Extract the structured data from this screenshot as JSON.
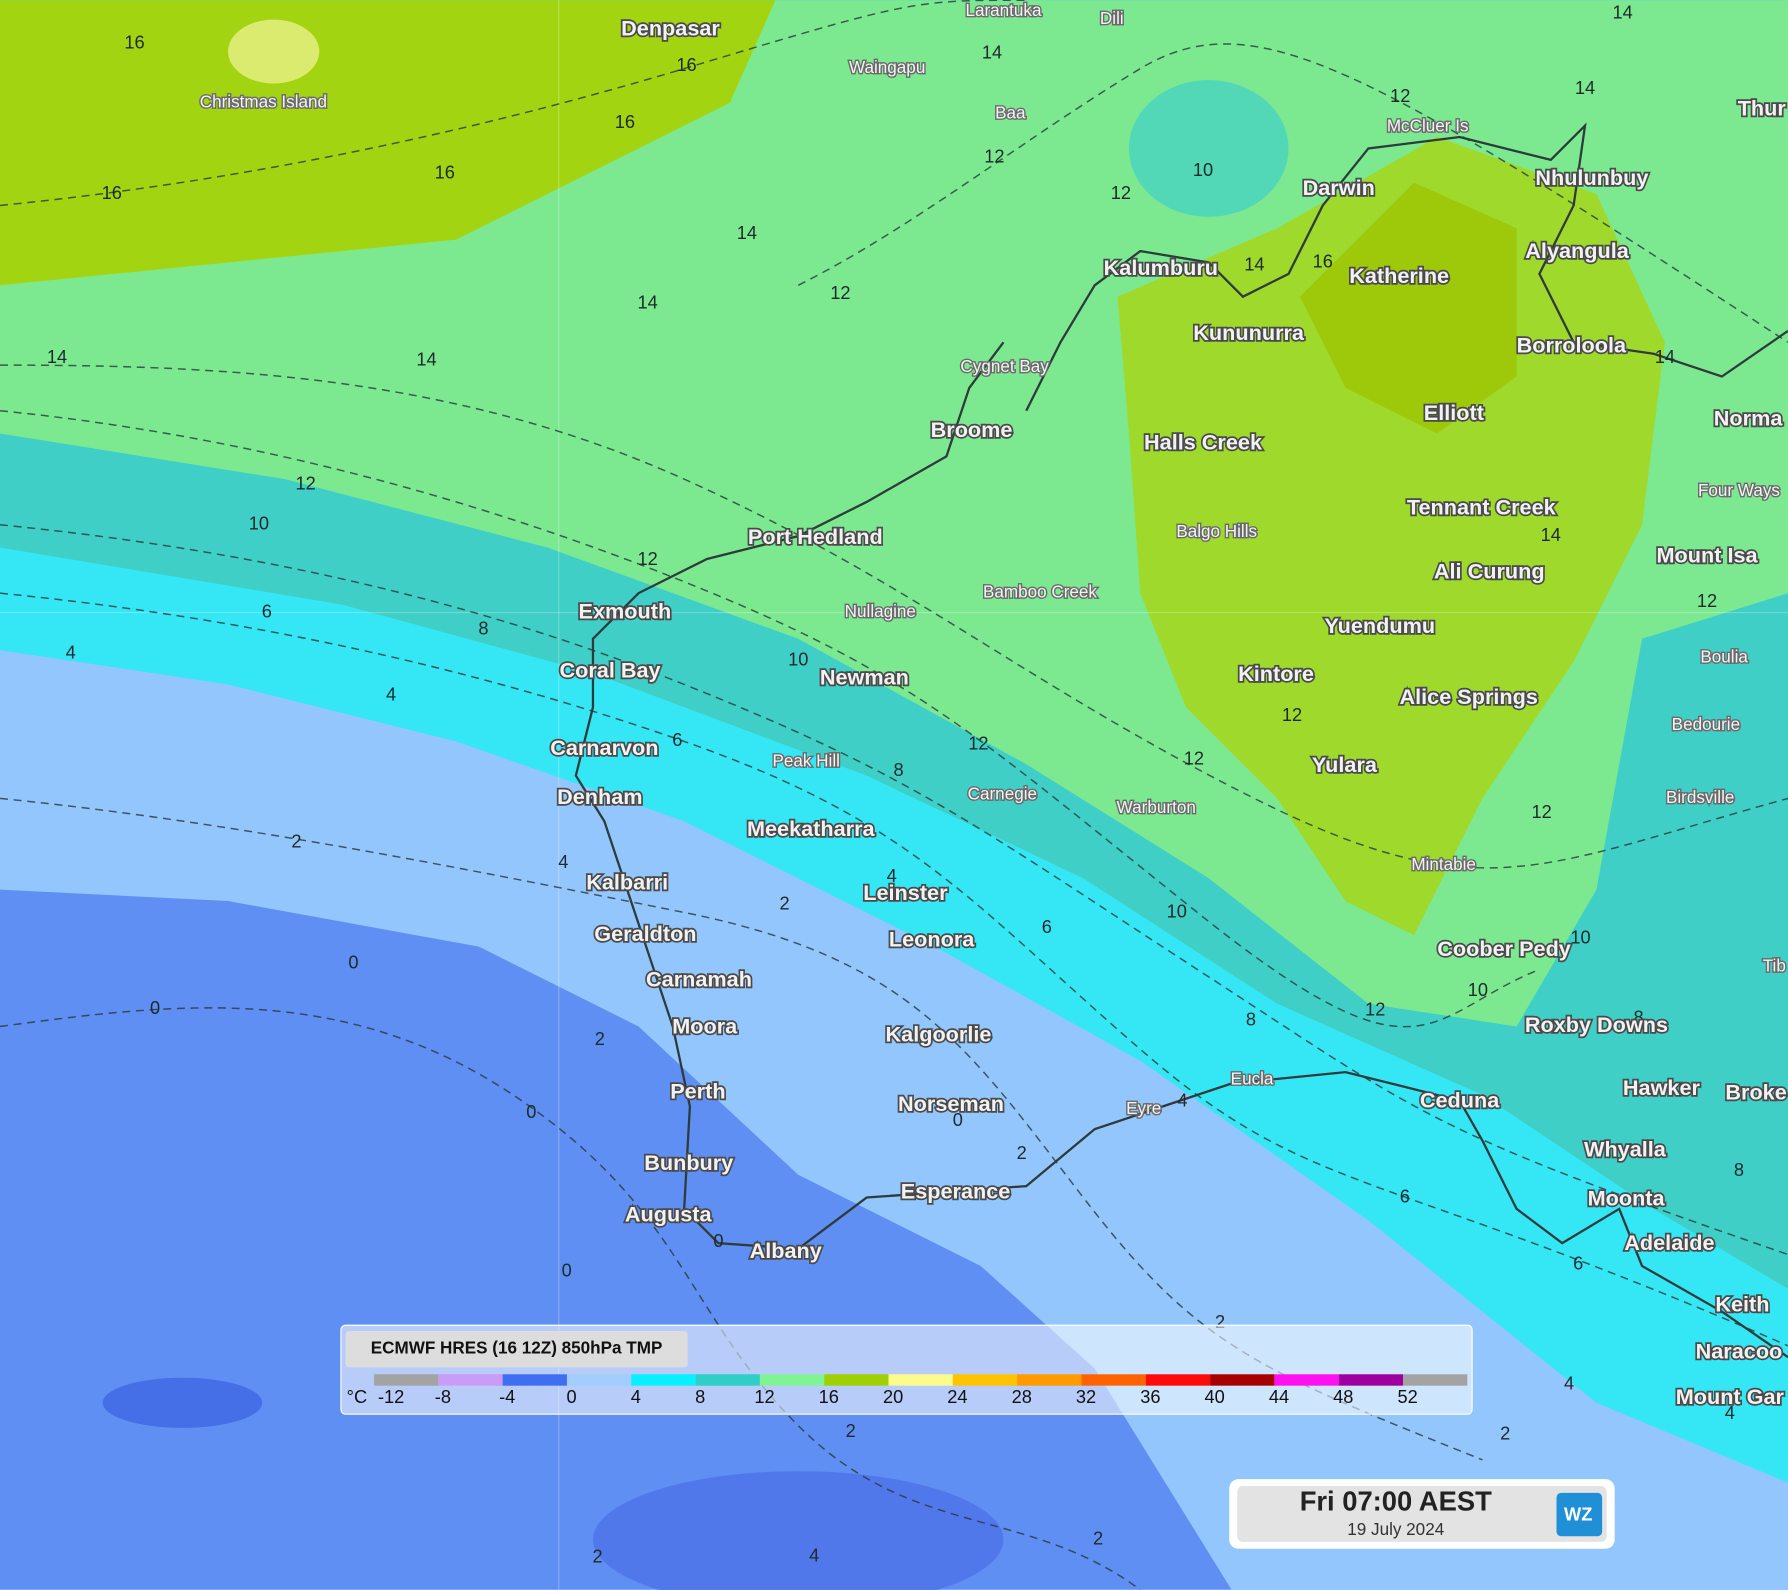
{
  "map": {
    "cities": [
      "Denpasar",
      "Darwin",
      "Nhulunbuy",
      "Thur",
      "Kalumburu",
      "Katherine",
      "Alyangula",
      "Kununurra",
      "Borroloola",
      "Elliott",
      "Norma",
      "Broome",
      "Halls Creek",
      "Tennant Creek",
      "Port Hedland",
      "Mount Isa",
      "Ali Curung",
      "Exmouth",
      "Yuendumu",
      "Coral Bay",
      "Kintore",
      "Newman",
      "Alice Springs",
      "Carnarvon",
      "Yulara",
      "Denham",
      "Meekatharra",
      "Kalbarri",
      "Leinster",
      "Geraldton",
      "Leonora",
      "Coober Pedy",
      "Carnamah",
      "Roxby Downs",
      "Moora",
      "Kalgoorlie",
      "Perth",
      "Hawker",
      "Broke",
      "Ceduna",
      "Norseman",
      "Whyalla",
      "Bunbury",
      "Esperance",
      "Moonta",
      "Augusta",
      "Adelaide",
      "Albany",
      "Keith",
      "Naracoo",
      "Mount Gar"
    ],
    "towns": [
      "Larantuka",
      "Dili",
      "Waingapu",
      "Baa",
      "Christmas Island",
      "McCluer Is",
      "Cygnet Bay",
      "Four Ways",
      "Balgo Hills",
      "Bamboo Creek",
      "Nullagine",
      "Boulia",
      "Bedourie",
      "Peak Hill",
      "Carnegie",
      "Birdsville",
      "Warburton",
      "Mintabie",
      "Tib",
      "Eucla",
      "Eyre"
    ],
    "contour_labels": [
      16,
      16,
      14,
      14,
      14,
      16,
      16,
      16,
      12,
      12,
      10,
      12,
      14,
      12,
      14,
      14,
      16,
      14,
      14,
      14,
      12,
      10,
      12,
      14,
      12,
      6,
      8,
      4,
      4,
      10,
      12,
      6,
      8,
      12,
      12,
      12,
      2,
      4,
      2,
      4,
      10,
      6,
      10,
      10,
      12,
      8,
      8,
      0,
      0,
      2,
      0,
      0,
      2,
      4,
      8,
      6,
      6,
      0,
      0,
      2,
      4,
      2,
      4,
      2,
      2,
      4,
      2
    ]
  },
  "legend": {
    "title": "ECMWF HRES (16 12Z) 850hPa TMP",
    "unit": "°C",
    "ticks": [
      -12,
      -8,
      -4,
      0,
      4,
      8,
      12,
      16,
      20,
      24,
      28,
      32,
      36,
      40,
      44,
      48,
      52
    ],
    "colors": [
      "#a3a3a3",
      "#c99cf7",
      "#3f6ef0",
      "#a2cdfc",
      "#08f0ff",
      "#2fcfc5",
      "#80f495",
      "#9fd004",
      "#fbfc8c",
      "#ffc400",
      "#ff9a00",
      "#ff6200",
      "#ff0a0a",
      "#a80000",
      "#ff10f0",
      "#9e00a0",
      "#a3a3a3"
    ]
  },
  "timestamp": {
    "time": "Fri 07:00 AEST",
    "date": "19 July 2024",
    "logo": "WZ"
  }
}
